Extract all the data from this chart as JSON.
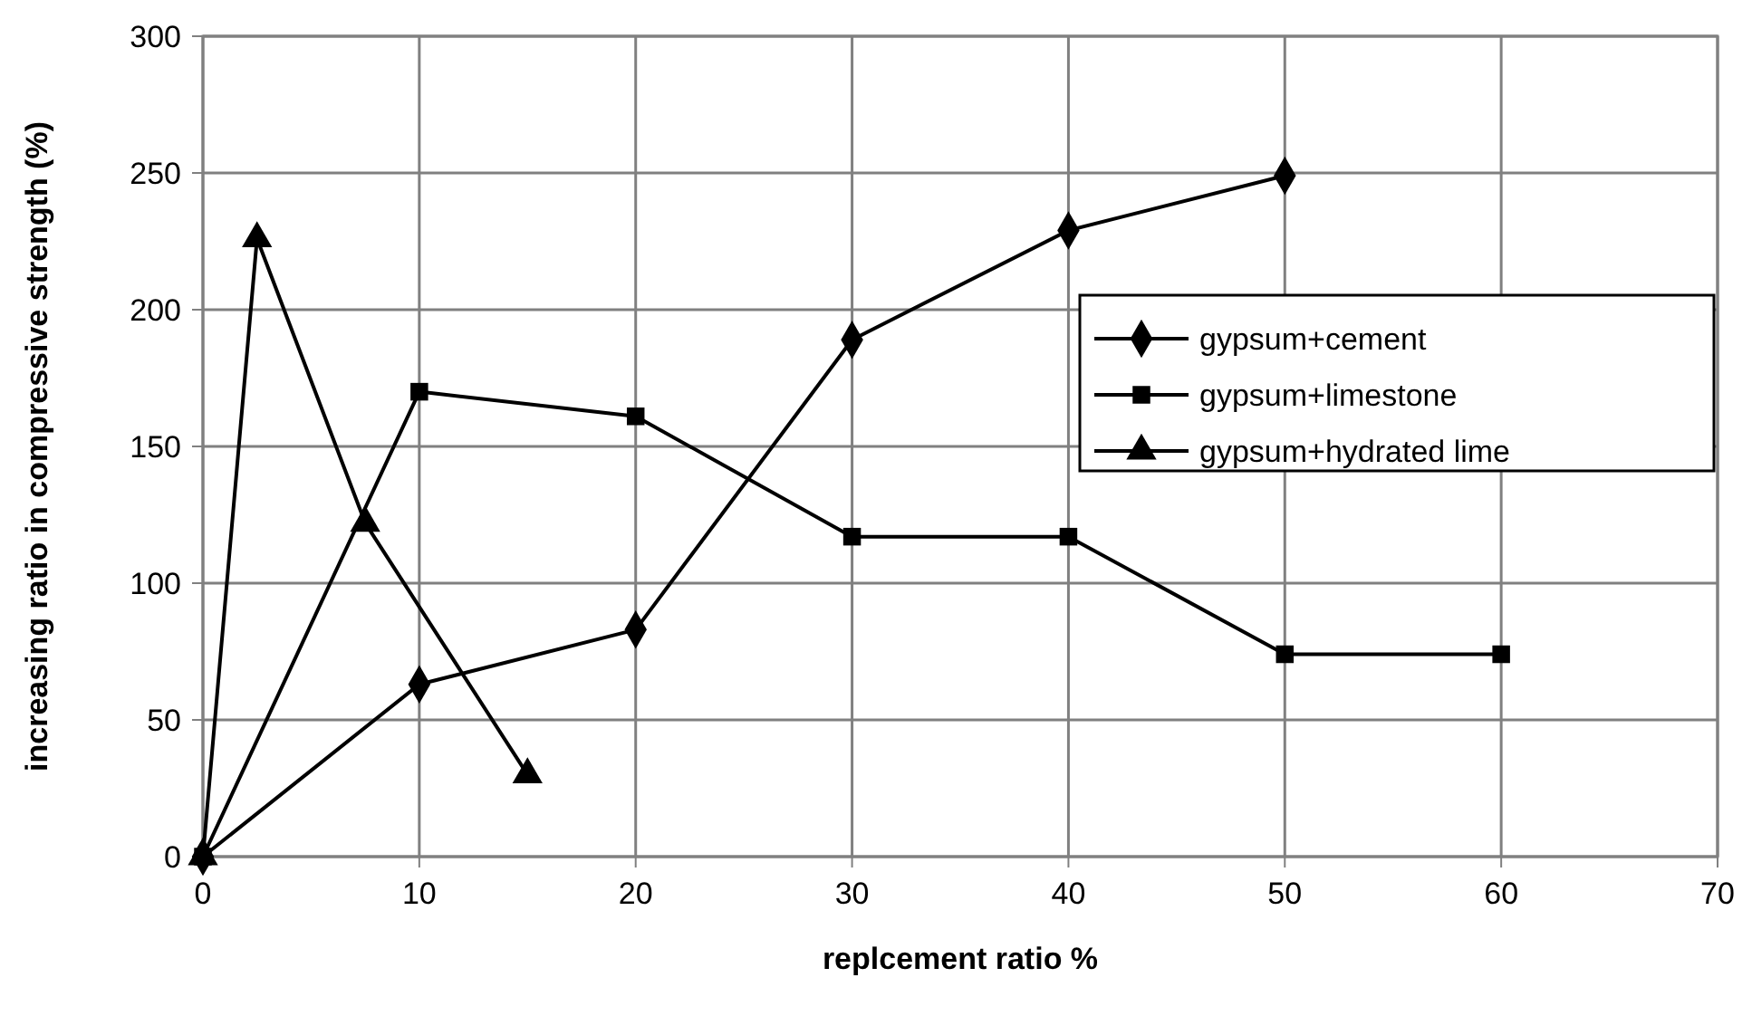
{
  "chart_data": {
    "type": "line",
    "xlabel": "replcement ratio %",
    "ylabel": "increasing ratio in compressive strength (%)",
    "xlim": [
      0,
      70
    ],
    "xticks": [
      0,
      10,
      20,
      30,
      40,
      50,
      60,
      70
    ],
    "ylim": [
      0,
      300
    ],
    "yticks": [
      0,
      50,
      100,
      150,
      200,
      250,
      300
    ],
    "grid": true,
    "legend": "right",
    "line_style": "solid",
    "series": [
      {
        "name": "gypsum+cement",
        "color": "#000000",
        "marker": "diamond",
        "x": [
          0,
          10,
          20,
          30,
          40,
          50
        ],
        "values": [
          0,
          63,
          83,
          189,
          229,
          249
        ]
      },
      {
        "name": "gypsum+limestone",
        "color": "#000000",
        "marker": "square",
        "x": [
          0,
          10,
          20,
          30,
          40,
          50,
          60
        ],
        "values": [
          0,
          170,
          161,
          117,
          117,
          74,
          74
        ]
      },
      {
        "name": "gypsum+hydrated lime",
        "color": "#000000",
        "marker": "triangle",
        "x": [
          0,
          2.5,
          7.5,
          15
        ],
        "values": [
          0,
          226,
          122,
          30
        ]
      }
    ]
  }
}
